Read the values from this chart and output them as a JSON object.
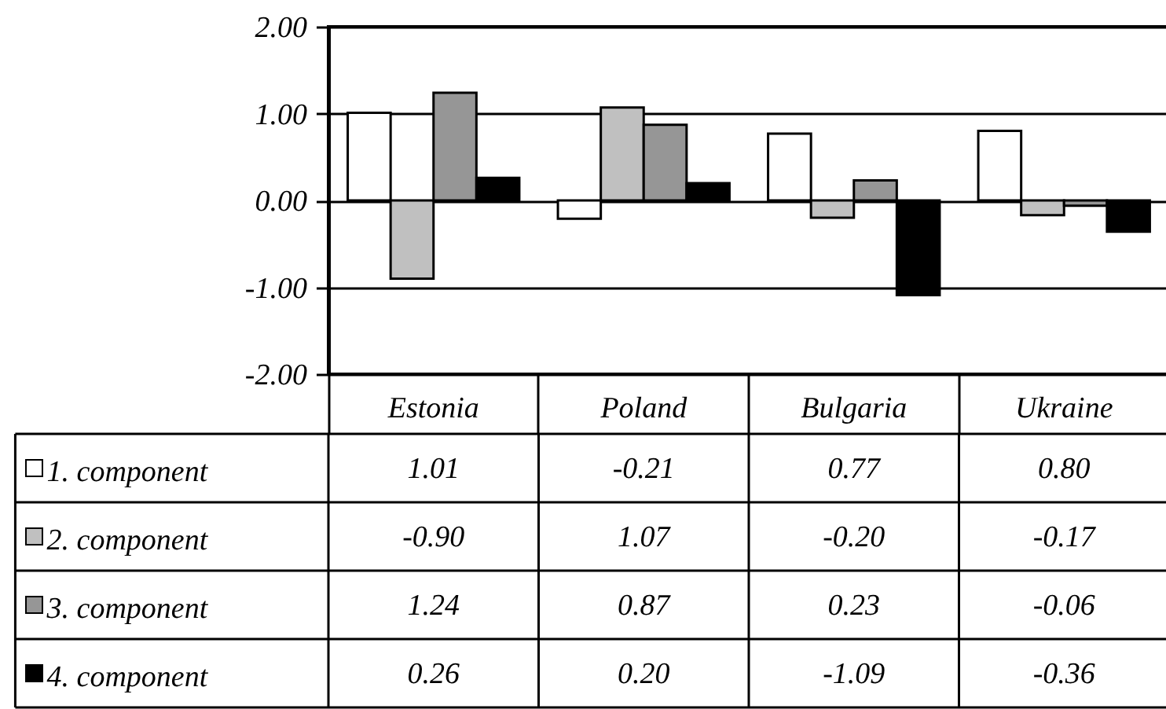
{
  "chart_data": {
    "type": "bar",
    "categories": [
      "Estonia",
      "Poland",
      "Bulgaria",
      "Ukraine"
    ],
    "series": [
      {
        "name": "1. component",
        "color": "#ffffff",
        "values": [
          1.01,
          -0.21,
          0.77,
          0.8
        ],
        "value_labels": [
          "1.01",
          "-0.21",
          "0.77",
          "0.80"
        ]
      },
      {
        "name": "2. component",
        "color": "#c0c0c0",
        "values": [
          -0.9,
          1.07,
          -0.2,
          -0.17
        ],
        "value_labels": [
          "-0.90",
          "1.07",
          "-0.20",
          "-0.17"
        ]
      },
      {
        "name": "3. component",
        "color": "#969696",
        "values": [
          1.24,
          0.87,
          0.23,
          -0.06
        ],
        "value_labels": [
          "1.24",
          "0.87",
          "0.23",
          "-0.06"
        ]
      },
      {
        "name": "4. component",
        "color": "#000000",
        "values": [
          0.26,
          0.2,
          -1.09,
          -0.36
        ],
        "value_labels": [
          "0.26",
          "0.20",
          "-1.09",
          "-0.36"
        ]
      }
    ],
    "ylim": [
      -2,
      2
    ],
    "yticks": [
      {
        "value": -2,
        "label": "-2.00"
      },
      {
        "value": -1,
        "label": "-1.00"
      },
      {
        "value": 0,
        "label": "0.00"
      },
      {
        "value": 1,
        "label": "1.00"
      },
      {
        "value": 2,
        "label": "2.00"
      }
    ],
    "grid": "y",
    "legend": "bottom"
  }
}
